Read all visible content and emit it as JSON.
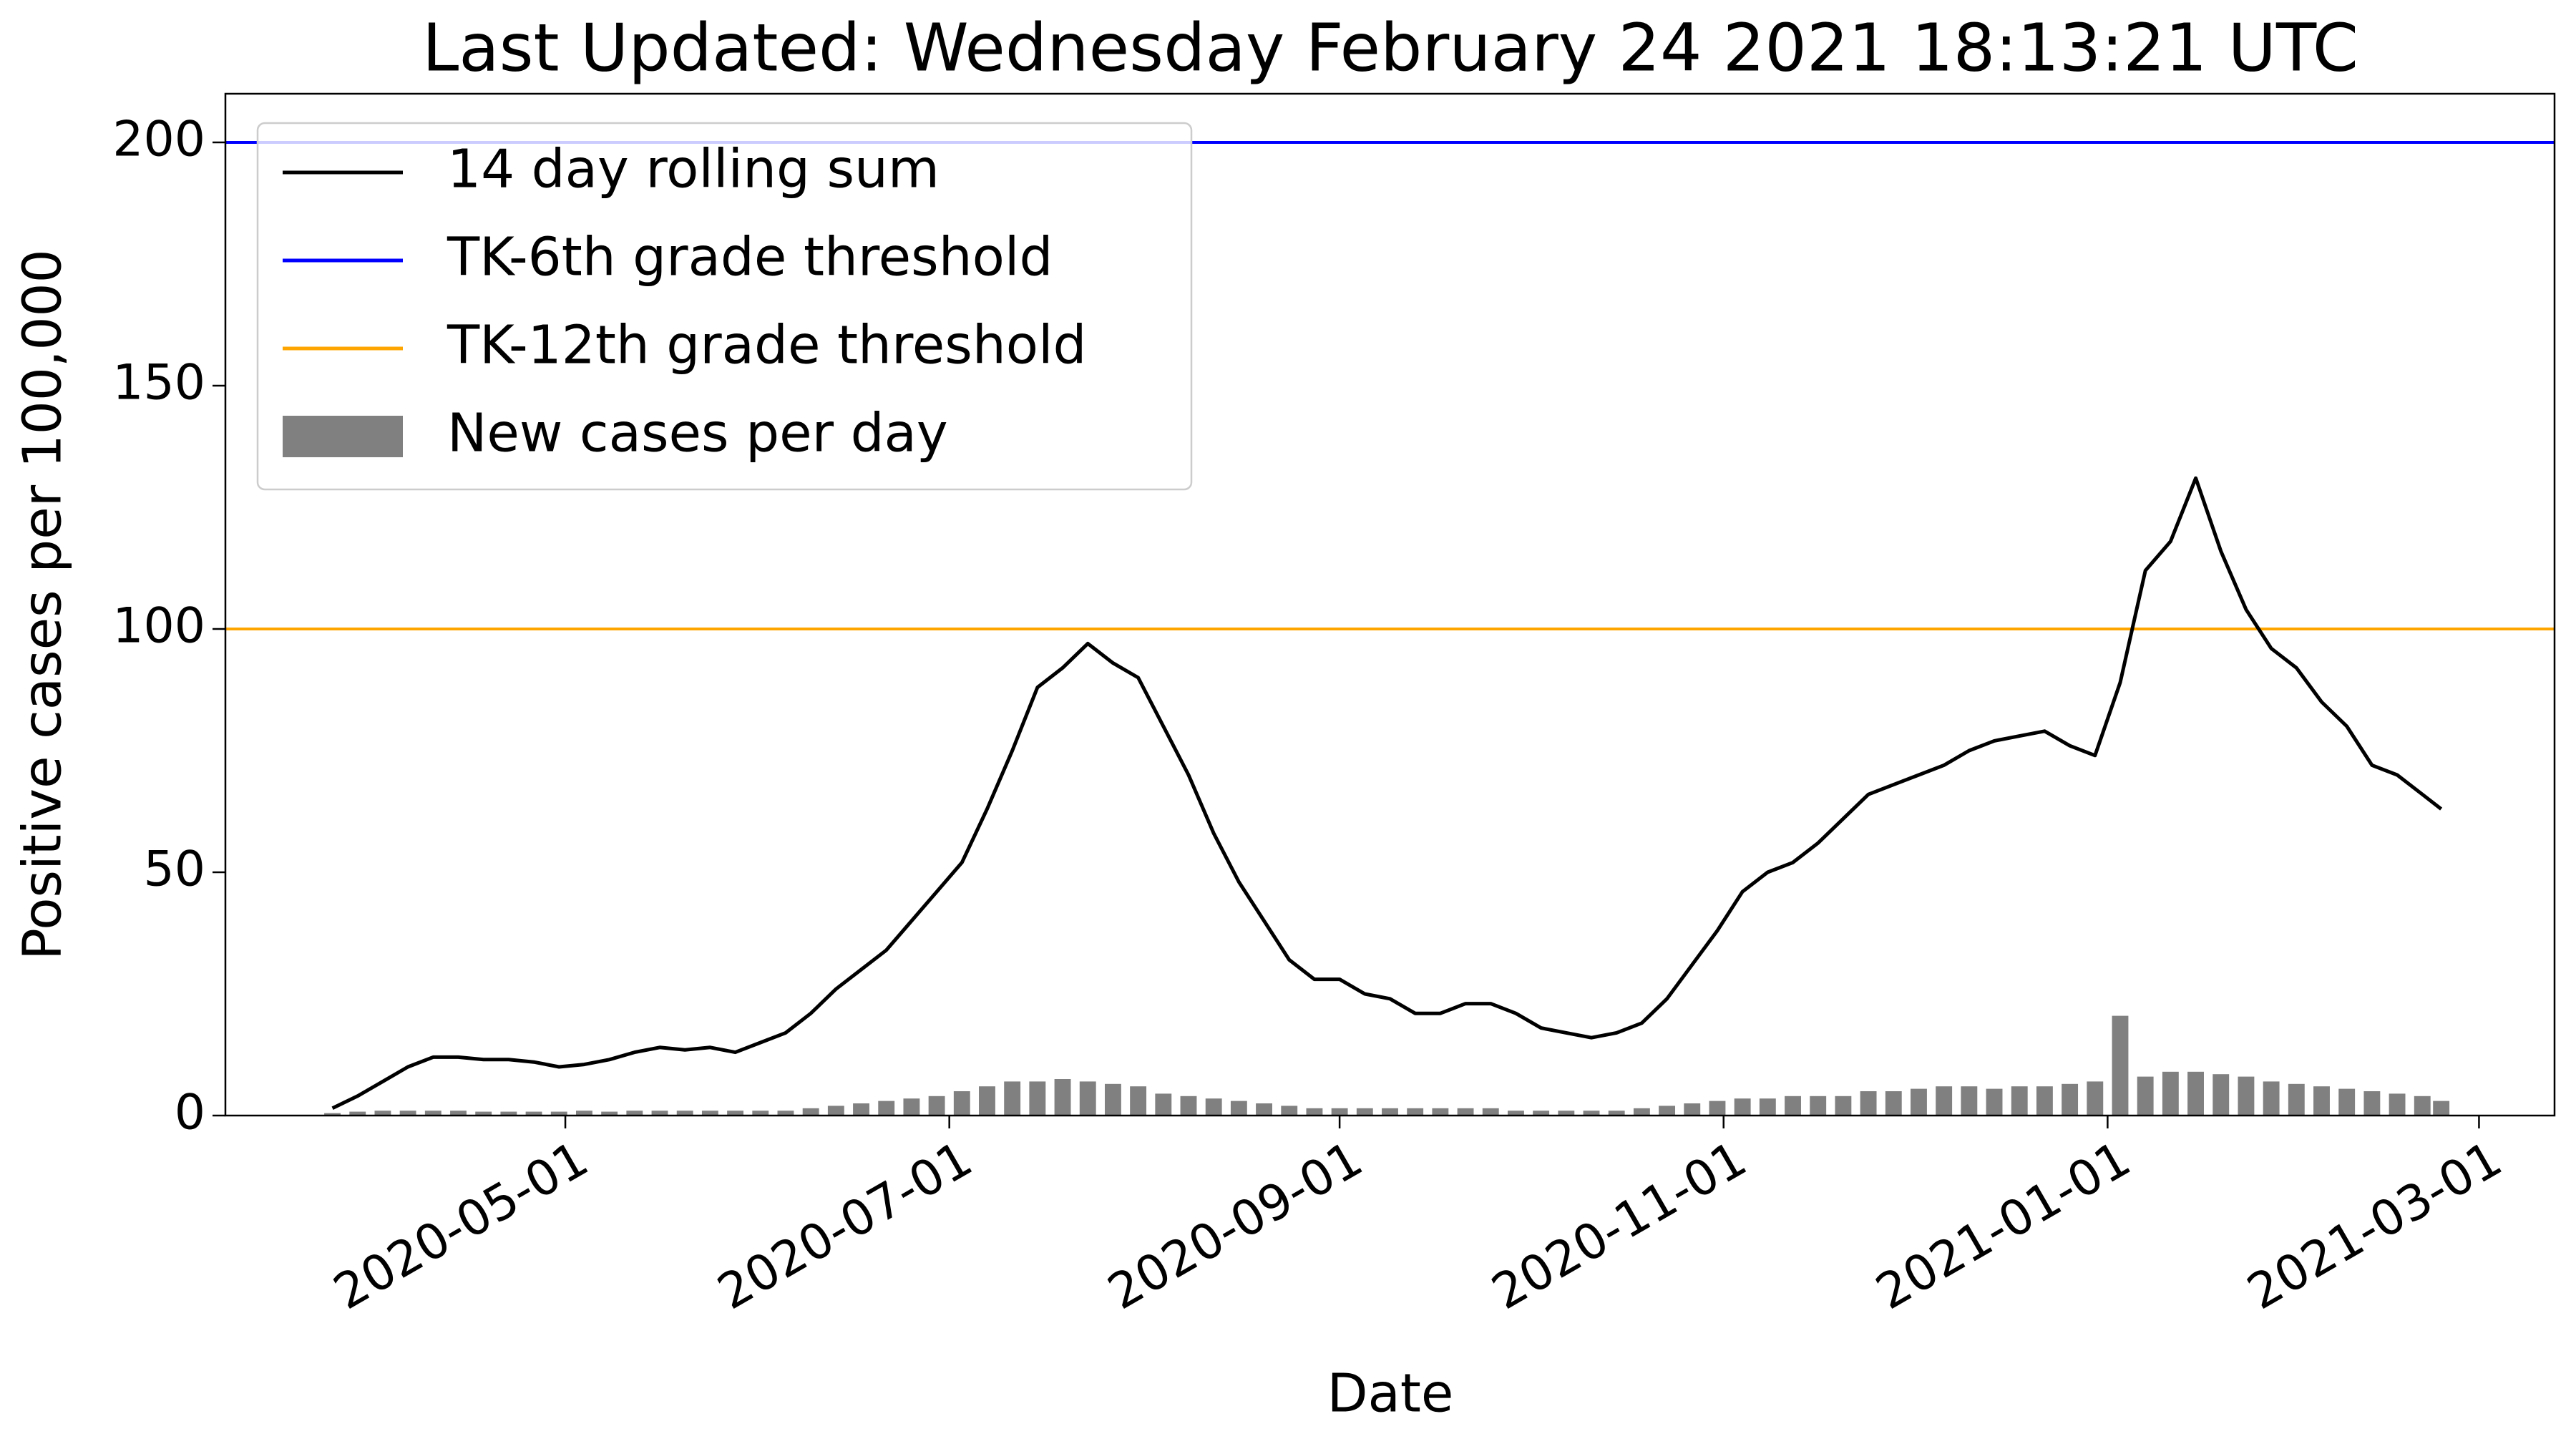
{
  "chart_data": {
    "type": "line",
    "title": "Last Updated: Wednesday February 24 2021 18:13:21 UTC",
    "xlabel": "Date",
    "ylabel": "Positive cases per 100,000",
    "legend": "upper left",
    "x": [
      "2020-03-25",
      "2020-03-29",
      "2020-04-02",
      "2020-04-06",
      "2020-04-10",
      "2020-04-14",
      "2020-04-18",
      "2020-04-22",
      "2020-04-26",
      "2020-04-30",
      "2020-05-04",
      "2020-05-08",
      "2020-05-12",
      "2020-05-16",
      "2020-05-20",
      "2020-05-24",
      "2020-05-28",
      "2020-06-01",
      "2020-06-05",
      "2020-06-09",
      "2020-06-13",
      "2020-06-17",
      "2020-06-21",
      "2020-06-25",
      "2020-06-29",
      "2020-07-03",
      "2020-07-07",
      "2020-07-11",
      "2020-07-15",
      "2020-07-19",
      "2020-07-23",
      "2020-07-27",
      "2020-07-31",
      "2020-08-04",
      "2020-08-08",
      "2020-08-12",
      "2020-08-16",
      "2020-08-20",
      "2020-08-24",
      "2020-08-28",
      "2020-09-01",
      "2020-09-05",
      "2020-09-09",
      "2020-09-13",
      "2020-09-17",
      "2020-09-21",
      "2020-09-25",
      "2020-09-29",
      "2020-10-03",
      "2020-10-07",
      "2020-10-11",
      "2020-10-15",
      "2020-10-19",
      "2020-10-23",
      "2020-10-27",
      "2020-10-31",
      "2020-11-04",
      "2020-11-08",
      "2020-11-12",
      "2020-11-16",
      "2020-11-20",
      "2020-11-24",
      "2020-11-28",
      "2020-12-02",
      "2020-12-06",
      "2020-12-10",
      "2020-12-14",
      "2020-12-18",
      "2020-12-22",
      "2020-12-26",
      "2020-12-30",
      "2021-01-03",
      "2021-01-07",
      "2021-01-11",
      "2021-01-15",
      "2021-01-19",
      "2021-01-23",
      "2021-01-27",
      "2021-01-31",
      "2021-02-04",
      "2021-02-08",
      "2021-02-12",
      "2021-02-16",
      "2021-02-20",
      "2021-02-23"
    ],
    "series": [
      {
        "name": "14 day rolling sum",
        "type": "line",
        "color": "black",
        "values": [
          1.5,
          4,
          7,
          10,
          12,
          12,
          11.5,
          11.5,
          11,
          10,
          10.5,
          11.5,
          13,
          14,
          13.5,
          14,
          13,
          15,
          17,
          21,
          26,
          30,
          34,
          40,
          46,
          52,
          63,
          75,
          88,
          92,
          97,
          93,
          90,
          80,
          70,
          58,
          48,
          40,
          32,
          28,
          28,
          25,
          24,
          21,
          21,
          23,
          23,
          21,
          18,
          17,
          16,
          17,
          19,
          24,
          31,
          38,
          46,
          50,
          52,
          56,
          61,
          66,
          68,
          70,
          72,
          75,
          77,
          78,
          79,
          76,
          74,
          89,
          112,
          118,
          131,
          116,
          104,
          96,
          92,
          85,
          80,
          72,
          70,
          66,
          63
        ]
      },
      {
        "name": "TK-6th grade threshold",
        "type": "hline",
        "color": "blue",
        "value": 200
      },
      {
        "name": "TK-12th grade threshold",
        "type": "hline",
        "color": "orange",
        "value": 100
      },
      {
        "name": "New cases per day",
        "type": "bar",
        "color": "gray",
        "values": [
          0.5,
          0.8,
          1,
          1,
          1,
          1,
          0.8,
          0.8,
          0.8,
          0.8,
          1,
          0.8,
          1,
          1,
          1,
          1,
          1,
          1,
          1,
          1.5,
          2,
          2.5,
          3,
          3.5,
          4,
          5,
          6,
          7,
          7,
          7.5,
          7,
          6.5,
          6,
          4.5,
          4,
          3.5,
          3,
          2.5,
          2,
          1.5,
          1.5,
          1.5,
          1.5,
          1.5,
          1.5,
          1.5,
          1.5,
          1,
          1,
          1,
          1,
          1,
          1.5,
          2,
          2.5,
          3,
          3.5,
          3.5,
          4,
          4,
          4,
          5,
          5,
          5.5,
          6,
          6,
          5.5,
          6,
          6,
          6.5,
          7,
          20.5,
          8,
          9,
          9,
          8.5,
          8,
          7,
          6.5,
          6,
          5.5,
          5,
          4.5,
          4,
          3
        ]
      }
    ],
    "xlim": [
      "2020-03-08",
      "2021-03-13"
    ],
    "xticks": [
      "2020-05-01",
      "2020-07-01",
      "2020-09-01",
      "2020-11-01",
      "2021-01-01",
      "2021-03-01"
    ],
    "ylim": [
      0,
      210
    ],
    "yticks": [
      0,
      50,
      100,
      150,
      200
    ]
  }
}
